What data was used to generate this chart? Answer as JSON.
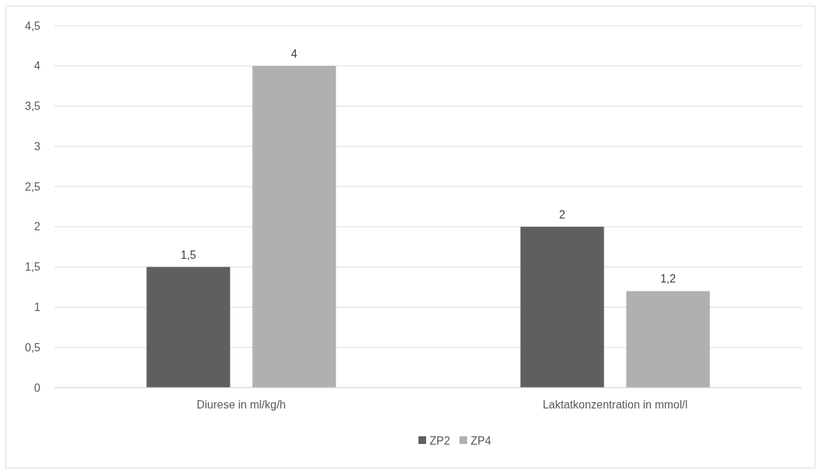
{
  "chart_data": {
    "type": "bar",
    "categories": [
      "Diurese in ml/kg/h",
      "Laktatkonzentration in mmol/l"
    ],
    "series": [
      {
        "name": "ZP2",
        "color": "#5f5f5f",
        "values": [
          1.5,
          2
        ],
        "value_labels": [
          "1,5",
          "2"
        ]
      },
      {
        "name": "ZP4",
        "color": "#b0b0b0",
        "values": [
          4,
          1.2
        ],
        "value_labels": [
          "4",
          "1,2"
        ]
      }
    ],
    "ylim": [
      0,
      4.5
    ],
    "yticks": [
      0,
      {
        "value": 0.5,
        "label": "0,5"
      },
      1,
      {
        "value": 1.5,
        "label": "1,5"
      },
      2,
      {
        "value": 2.5,
        "label": "2,5"
      },
      3,
      {
        "value": 3.5,
        "label": "3,5"
      },
      4,
      {
        "value": 4.5,
        "label": "4,5"
      }
    ],
    "grid": "y",
    "legend": "bottom"
  }
}
